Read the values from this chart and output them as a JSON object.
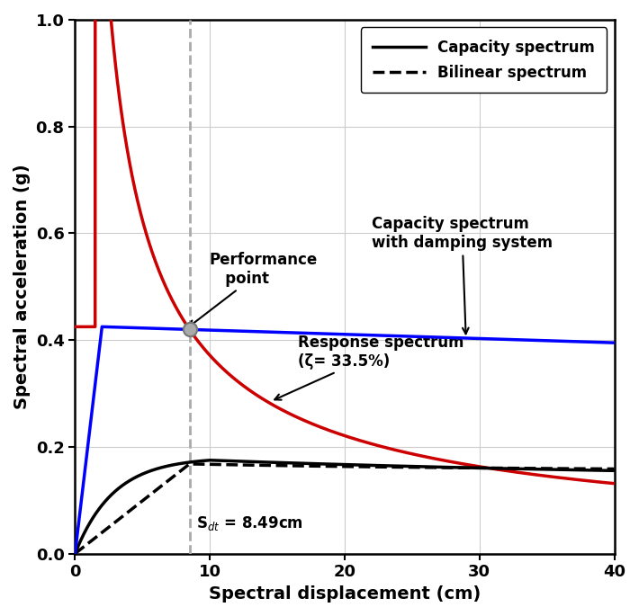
{
  "xlim": [
    0,
    40
  ],
  "ylim": [
    0.0,
    1.0
  ],
  "xlabel": "Spectral displacement (cm)",
  "ylabel": "Spectral acceleration (g)",
  "xticks": [
    0,
    10,
    20,
    30,
    40
  ],
  "yticks": [
    0.0,
    0.2,
    0.4,
    0.6,
    0.8,
    1.0
  ],
  "performance_point": [
    8.49,
    0.42
  ],
  "sdt_label": "S$_{dt}$ = 8.49cm",
  "annotation_performance": "Performance\n   point",
  "annotation_capacity_damping": "Capacity spectrum\nwith damping system",
  "annotation_response": "Response spectrum\n(ζ= 33.5%)",
  "legend_capacity": "Capacity spectrum",
  "legend_bilinear": "Bilinear spectrum",
  "capacity_damping_color": "#0000FF",
  "capacity_color": "#000000",
  "bilinear_color": "#000000",
  "response_color": "#CC0000",
  "figsize": [
    7.1,
    6.85
  ],
  "dpi": 100
}
